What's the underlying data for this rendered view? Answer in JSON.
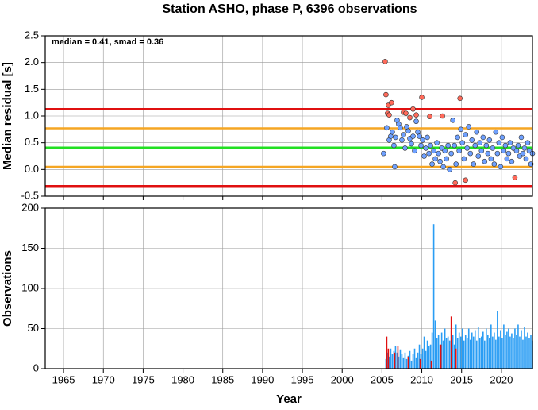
{
  "chart_data": [
    {
      "type": "scatter",
      "title": "Station ASHO, phase P, 6396 observations",
      "ylabel": "Median residual [s]",
      "annotation": "median = 0.41, smad = 0.36",
      "xlim": [
        1962.7,
        2023.9
      ],
      "xticks": [
        1965,
        1970,
        1975,
        1980,
        1985,
        1990,
        1995,
        2000,
        2005,
        2010,
        2015,
        2020
      ],
      "ylim": [
        -0.5,
        2.5
      ],
      "yticks": [
        -0.5,
        {
          "value": 0,
          "label": "0.0"
        },
        0.5,
        {
          "value": 1,
          "label": "1.0"
        },
        1.5,
        {
          "value": 2,
          "label": "2.0"
        },
        2.5
      ],
      "grid": true,
      "hlines": [
        {
          "value": 1.13,
          "color": "#e01010"
        },
        {
          "value": 0.77,
          "color": "#f5a623"
        },
        {
          "value": 0.41,
          "color": "#22e022"
        },
        {
          "value": 0.05,
          "color": "#f5a623"
        },
        {
          "value": -0.31,
          "color": "#e01010"
        }
      ],
      "series": [
        {
          "color": "#6ea0ff",
          "x": [
            2005.2,
            2005.6,
            2005.9,
            2006.1,
            2006.3,
            2006.5,
            2006.7,
            2006.6,
            2006.9,
            2007.1,
            2007.3,
            2007.5,
            2007.7,
            2007.9,
            2008.1,
            2008.3,
            2008.5,
            2008.7,
            2008.9,
            2009.1,
            2009.3,
            2009.5,
            2009.7,
            2009.9,
            2010.1,
            2010.3,
            2010.5,
            2010.7,
            2010.9,
            2011.1,
            2011.3,
            2011.5,
            2011.7,
            2011.9,
            2012.1,
            2012.3,
            2012.5,
            2012.7,
            2012.9,
            2013.1,
            2013.3,
            2013.5,
            2013.7,
            2013.9,
            2014.1,
            2014.3,
            2014.5,
            2014.7,
            2014.9,
            2015.1,
            2015.3,
            2015.5,
            2015.7,
            2015.9,
            2016.1,
            2016.3,
            2016.5,
            2016.7,
            2016.9,
            2017.1,
            2017.3,
            2017.5,
            2017.7,
            2017.9,
            2018.1,
            2018.3,
            2018.5,
            2018.7,
            2018.9,
            2019.1,
            2019.3,
            2019.5,
            2019.7,
            2019.9,
            2020.1,
            2020.3,
            2020.5,
            2020.7,
            2020.9,
            2021.1,
            2021.3,
            2021.5,
            2021.9,
            2022.1,
            2022.3,
            2022.5,
            2022.7,
            2022.9,
            2023.1,
            2023.3,
            2023.5,
            2023.7,
            2023.9
          ],
          "values": [
            0.3,
            0.78,
            0.55,
            0.62,
            0.7,
            0.45,
            0.6,
            0.05,
            0.92,
            0.85,
            0.78,
            0.55,
            0.65,
            0.4,
            0.8,
            0.72,
            0.58,
            0.48,
            0.62,
            0.35,
            0.9,
            0.7,
            0.62,
            0.45,
            0.55,
            0.25,
            0.4,
            0.6,
            0.3,
            0.45,
            0.1,
            0.35,
            0.2,
            0.5,
            0.3,
            0.15,
            0.4,
            0.05,
            0.35,
            0.2,
            0.45,
            0.0,
            0.3,
            0.92,
            0.45,
            0.1,
            0.6,
            0.35,
            0.75,
            0.5,
            0.2,
            0.65,
            0.4,
            0.8,
            0.3,
            0.55,
            0.1,
            0.45,
            0.7,
            0.25,
            0.5,
            0.35,
            0.6,
            0.15,
            0.45,
            0.3,
            0.55,
            0.2,
            0.4,
            0.1,
            0.7,
            0.3,
            0.5,
            0.05,
            0.6,
            0.35,
            0.45,
            0.2,
            0.3,
            0.5,
            0.15,
            0.4,
            0.35,
            0.45,
            0.25,
            0.6,
            0.3,
            0.4,
            0.2,
            0.5,
            0.35,
            0.1,
            0.3
          ]
        },
        {
          "color": "#ff6a5a",
          "x": [
            2005.4,
            2005.5,
            2005.8,
            2005.7,
            2005.9,
            2006.2,
            2007.7,
            2008.0,
            2008.5,
            2008.9,
            2009.3,
            2010.0,
            2011.0,
            2012.6,
            2014.2,
            2014.8,
            2015.5,
            2021.7
          ],
          "values": [
            2.02,
            1.4,
            1.2,
            1.05,
            1.02,
            1.25,
            1.07,
            1.05,
            0.97,
            1.13,
            1.02,
            1.35,
            0.99,
            1.0,
            -0.25,
            1.33,
            -0.2,
            -0.15
          ]
        }
      ]
    },
    {
      "type": "bar",
      "ylabel": "Observations",
      "xlabel": "Year",
      "xlim": [
        1962.7,
        2023.9
      ],
      "xticks": [
        1965,
        1970,
        1975,
        1980,
        1985,
        1990,
        1995,
        2000,
        2005,
        2010,
        2015,
        2020
      ],
      "ylim": [
        0,
        200
      ],
      "yticks": [
        0,
        50,
        100,
        150,
        200
      ],
      "grid": true,
      "series": [
        {
          "color": "#2a9df4",
          "x": [
            2005.5,
            2005.7,
            2005.9,
            2006.1,
            2006.3,
            2006.5,
            2006.7,
            2006.9,
            2007.1,
            2007.3,
            2007.5,
            2007.7,
            2007.9,
            2008.1,
            2008.3,
            2008.5,
            2008.7,
            2008.9,
            2009.1,
            2009.3,
            2009.5,
            2009.7,
            2009.9,
            2010.1,
            2010.3,
            2010.5,
            2010.7,
            2010.9,
            2011.1,
            2011.3,
            2011.5,
            2011.7,
            2011.9,
            2012.1,
            2012.3,
            2012.5,
            2012.7,
            2012.9,
            2013.1,
            2013.3,
            2013.5,
            2013.7,
            2013.9,
            2014.1,
            2014.3,
            2014.5,
            2014.7,
            2014.9,
            2015.1,
            2015.3,
            2015.5,
            2015.7,
            2015.9,
            2016.1,
            2016.3,
            2016.5,
            2016.7,
            2016.9,
            2017.1,
            2017.3,
            2017.5,
            2017.7,
            2017.9,
            2018.1,
            2018.3,
            2018.5,
            2018.7,
            2018.9,
            2019.1,
            2019.3,
            2019.5,
            2019.7,
            2019.9,
            2020.1,
            2020.3,
            2020.5,
            2020.7,
            2020.9,
            2021.1,
            2021.3,
            2021.5,
            2021.7,
            2021.9,
            2022.1,
            2022.3,
            2022.5,
            2022.7,
            2022.9,
            2023.1,
            2023.3,
            2023.5,
            2023.7,
            2023.9
          ],
          "values": [
            12,
            20,
            15,
            25,
            18,
            22,
            28,
            20,
            15,
            24,
            18,
            14,
            20,
            12,
            16,
            22,
            10,
            18,
            25,
            14,
            20,
            30,
            18,
            25,
            40,
            22,
            35,
            28,
            30,
            45,
            180,
            60,
            38,
            42,
            30,
            45,
            35,
            50,
            38,
            40,
            35,
            48,
            42,
            30,
            55,
            38,
            45,
            40,
            50,
            35,
            42,
            38,
            50,
            36,
            45,
            40,
            48,
            35,
            52,
            38,
            40,
            46,
            35,
            50,
            42,
            38,
            55,
            40,
            45,
            36,
            72,
            40,
            48,
            38,
            55,
            42,
            46,
            50,
            40,
            44,
            38,
            50,
            42,
            55,
            40,
            48,
            36,
            52,
            40,
            45,
            38,
            42,
            35
          ]
        },
        {
          "color": "#e01010",
          "x": [
            2005.6,
            2005.8,
            2006.6,
            2007.0,
            2008.3,
            2009.8,
            2011.2,
            2012.4,
            2013.7,
            2014.3
          ],
          "values": [
            40,
            25,
            20,
            28,
            15,
            12,
            10,
            30,
            65,
            25
          ]
        }
      ]
    }
  ]
}
